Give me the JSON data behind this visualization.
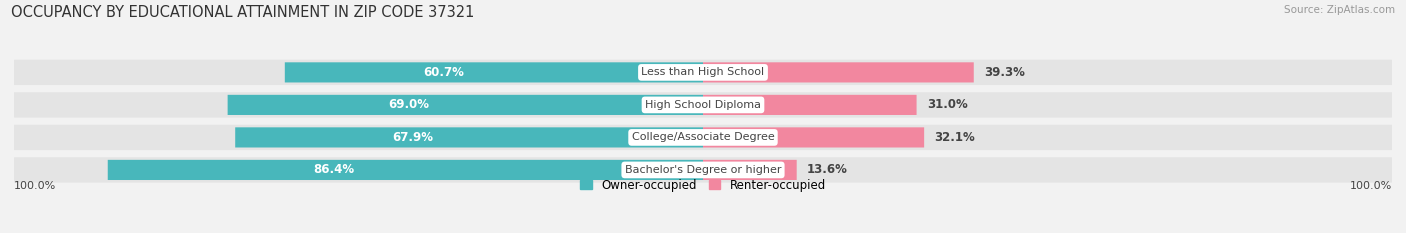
{
  "title": "OCCUPANCY BY EDUCATIONAL ATTAINMENT IN ZIP CODE 37321",
  "source": "Source: ZipAtlas.com",
  "categories": [
    "Less than High School",
    "High School Diploma",
    "College/Associate Degree",
    "Bachelor's Degree or higher"
  ],
  "owner_pct": [
    60.7,
    69.0,
    67.9,
    86.4
  ],
  "renter_pct": [
    39.3,
    31.0,
    32.1,
    13.6
  ],
  "owner_color": "#48b7bb",
  "renter_color": "#f2879f",
  "bg_color": "#f2f2f2",
  "row_bg_color": "#e4e4e4",
  "text_color_white": "#ffffff",
  "text_color_dark": "#444444",
  "x_left_label": "100.0%",
  "x_right_label": "100.0%",
  "legend_owner": "Owner-occupied",
  "legend_renter": "Renter-occupied",
  "title_fontsize": 10.5,
  "bar_height": 0.62,
  "source_fontsize": 7.5
}
